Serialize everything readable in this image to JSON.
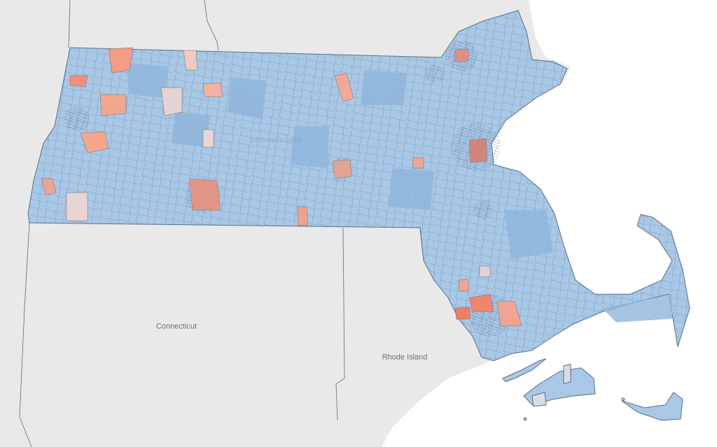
{
  "labels": {
    "massachusetts": "Massachusetts",
    "connecticut": "Connecticut",
    "rhode_island": "Rhode Island"
  }
}
